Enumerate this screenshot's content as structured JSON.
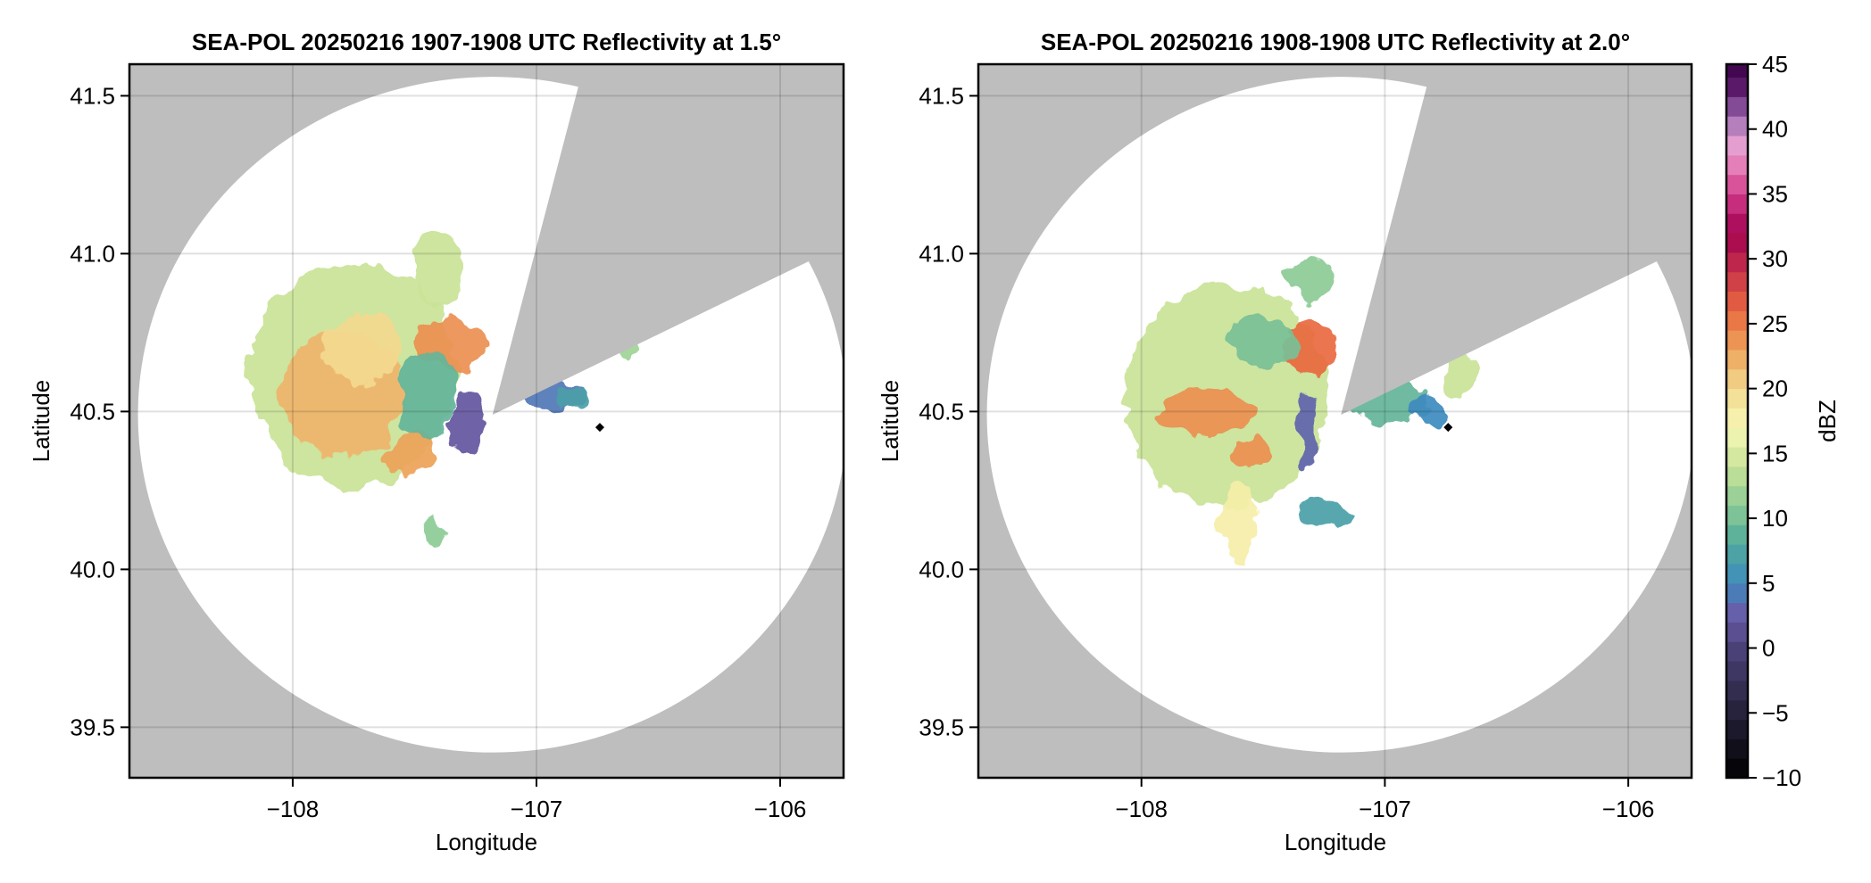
{
  "chart_data": [
    {
      "type": "heatmap",
      "subtype": "radar-ppi",
      "title": "SEA-POL 20250216 1907-1908 UTC Reflectivity at 1.5°",
      "xlabel": "Longitude",
      "ylabel": "Latitude",
      "xlim": [
        -108.67,
        -105.74
      ],
      "ylim": [
        39.34,
        41.6
      ],
      "xticks": [
        -108,
        -107,
        -106
      ],
      "xtick_labels": [
        "−108",
        "−107",
        "−106"
      ],
      "yticks": [
        39.5,
        40.0,
        40.5,
        41.0,
        41.5
      ],
      "ytick_labels": [
        "39.5",
        "40.0",
        "40.5",
        "41.0",
        "41.5"
      ],
      "grid": true,
      "radar_center": {
        "lon": -107.18,
        "lat": 40.49
      },
      "range_ring": {
        "dlon": 1.455,
        "dlat": 1.07
      },
      "blocked_sectors_deg_from_north": [
        [
          14,
          63
        ]
      ],
      "blocked_sector_2": {
        "start": 63,
        "end": 63
      },
      "marker": {
        "lon": -106.74,
        "lat": 40.45,
        "shape": "diamond"
      },
      "echoes": [
        {
          "lon": -107.75,
          "lat": 40.62,
          "rlon": 0.42,
          "rlat": 0.36,
          "dbz": 14
        },
        {
          "lon": -107.8,
          "lat": 40.55,
          "rlon": 0.25,
          "rlat": 0.2,
          "dbz": 22
        },
        {
          "lon": -107.72,
          "lat": 40.7,
          "rlon": 0.15,
          "rlat": 0.12,
          "dbz": 20
        },
        {
          "lon": -107.35,
          "lat": 40.72,
          "rlon": 0.14,
          "rlat": 0.08,
          "dbz": 24
        },
        {
          "lon": -107.52,
          "lat": 40.36,
          "rlon": 0.12,
          "rlat": 0.07,
          "dbz": 23
        },
        {
          "lon": -107.45,
          "lat": 40.55,
          "rlon": 0.12,
          "rlat": 0.15,
          "dbz": 9
        },
        {
          "lon": -107.28,
          "lat": 40.46,
          "rlon": 0.06,
          "rlat": 0.1,
          "dbz": 2
        },
        {
          "lon": -107.4,
          "lat": 40.95,
          "rlon": 0.1,
          "rlat": 0.12,
          "dbz": 14
        },
        {
          "lon": -106.92,
          "lat": 40.55,
          "rlon": 0.12,
          "rlat": 0.05,
          "dbz": 4
        },
        {
          "lon": -106.85,
          "lat": 40.54,
          "rlon": 0.07,
          "rlat": 0.04,
          "dbz": 7
        },
        {
          "lon": -106.63,
          "lat": 40.71,
          "rlon": 0.04,
          "rlat": 0.05,
          "dbz": 12
        },
        {
          "lon": -107.42,
          "lat": 40.12,
          "rlon": 0.03,
          "rlat": 0.06,
          "dbz": 11
        }
      ]
    },
    {
      "type": "heatmap",
      "subtype": "radar-ppi",
      "title": "SEA-POL 20250216 1908-1908 UTC Reflectivity at 2.0°",
      "xlabel": "Longitude",
      "ylabel": "Latitude",
      "xlim": [
        -108.67,
        -105.74
      ],
      "ylim": [
        39.34,
        41.6
      ],
      "xticks": [
        -108,
        -107,
        -106
      ],
      "xtick_labels": [
        "−108",
        "−107",
        "−106"
      ],
      "yticks": [
        39.5,
        40.0,
        40.5,
        41.0,
        41.5
      ],
      "ytick_labels": [
        "39.5",
        "40.0",
        "40.5",
        "41.0",
        "41.5"
      ],
      "grid": true,
      "radar_center": {
        "lon": -107.18,
        "lat": 40.49
      },
      "range_ring": {
        "dlon": 1.455,
        "dlat": 1.07
      },
      "blocked_sectors_deg_from_north": [
        [
          14,
          63
        ]
      ],
      "marker": {
        "lon": -106.74,
        "lat": 40.45,
        "shape": "diamond"
      },
      "echoes": [
        {
          "lon": -107.65,
          "lat": 40.55,
          "rlon": 0.42,
          "rlat": 0.35,
          "dbz": 14
        },
        {
          "lon": -107.72,
          "lat": 40.5,
          "rlon": 0.2,
          "rlat": 0.07,
          "dbz": 24
        },
        {
          "lon": -107.32,
          "lat": 40.7,
          "rlon": 0.12,
          "rlat": 0.09,
          "dbz": 26
        },
        {
          "lon": -107.55,
          "lat": 40.37,
          "rlon": 0.08,
          "rlat": 0.05,
          "dbz": 24
        },
        {
          "lon": -107.5,
          "lat": 40.72,
          "rlon": 0.15,
          "rlat": 0.08,
          "dbz": 10
        },
        {
          "lon": -107.6,
          "lat": 40.15,
          "rlon": 0.07,
          "rlat": 0.12,
          "dbz": 18
        },
        {
          "lon": -107.25,
          "lat": 40.18,
          "rlon": 0.1,
          "rlat": 0.06,
          "dbz": 7
        },
        {
          "lon": -107.32,
          "lat": 40.45,
          "rlon": 0.04,
          "rlat": 0.12,
          "dbz": 3
        },
        {
          "lon": -106.98,
          "lat": 40.53,
          "rlon": 0.16,
          "rlat": 0.07,
          "dbz": 9
        },
        {
          "lon": -106.82,
          "lat": 40.5,
          "rlon": 0.06,
          "rlat": 0.05,
          "dbz": 5
        },
        {
          "lon": -106.7,
          "lat": 40.63,
          "rlon": 0.07,
          "rlat": 0.09,
          "dbz": 14
        },
        {
          "lon": -107.3,
          "lat": 40.92,
          "rlon": 0.1,
          "rlat": 0.07,
          "dbz": 11
        }
      ]
    }
  ],
  "colorbar": {
    "label": "dBZ",
    "range": [
      -10,
      45
    ],
    "ticks": [
      45,
      40,
      35,
      30,
      25,
      20,
      15,
      10,
      5,
      0,
      -5,
      -10
    ],
    "tick_labels": [
      "45",
      "40",
      "35",
      "30",
      "25",
      "20",
      "15",
      "10",
      "5",
      "0",
      "−5",
      "−10"
    ],
    "bin_width_dbz": 1.5,
    "stops": [
      {
        "v": -10,
        "c": "#000000"
      },
      {
        "v": -5,
        "c": "#25213a"
      },
      {
        "v": 0,
        "c": "#4c437a"
      },
      {
        "v": 2.5,
        "c": "#6a5aa8"
      },
      {
        "v": 5,
        "c": "#3e8bbf"
      },
      {
        "v": 8,
        "c": "#50a99c"
      },
      {
        "v": 11,
        "c": "#8ccb95"
      },
      {
        "v": 14,
        "c": "#c9e397"
      },
      {
        "v": 17,
        "c": "#f7f8b5"
      },
      {
        "v": 20,
        "c": "#f2d98f"
      },
      {
        "v": 23,
        "c": "#eda259"
      },
      {
        "v": 26,
        "c": "#e9683f"
      },
      {
        "v": 29,
        "c": "#c7344a"
      },
      {
        "v": 32,
        "c": "#a2004f"
      },
      {
        "v": 35,
        "c": "#d23c8c"
      },
      {
        "v": 37,
        "c": "#e57ab5"
      },
      {
        "v": 39,
        "c": "#e4a4d4"
      },
      {
        "v": 41,
        "c": "#9967ae"
      },
      {
        "v": 43,
        "c": "#5e1c6e"
      },
      {
        "v": 45,
        "c": "#3a0048"
      }
    ]
  },
  "colors": {
    "background_masked": "#bebebe",
    "grid": "#d9d9d9",
    "marker": "#000000"
  }
}
